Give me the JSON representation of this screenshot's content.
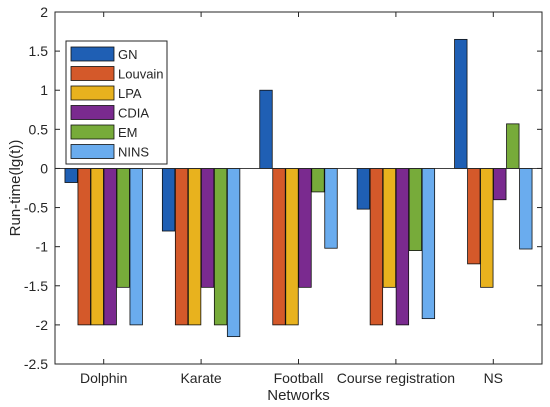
{
  "chart_data": {
    "type": "bar",
    "title": "",
    "xlabel": "Networks",
    "ylabel": "Run-time(lg(t))",
    "ylim": [
      -2.5,
      2
    ],
    "yticks": [
      -2.5,
      -2,
      -1.5,
      -1,
      -0.5,
      0,
      0.5,
      1,
      1.5,
      2
    ],
    "ytick_labels": [
      "-2.5",
      "-2",
      "-1.5",
      "-1",
      "-0.5",
      "0",
      "0.5",
      "1",
      "1.5",
      "2"
    ],
    "categories": [
      "Dolphin",
      "Karate",
      "Football",
      "Course registration",
      "NS"
    ],
    "grid": false,
    "legend_position": "top-left",
    "zero_line": true,
    "series": [
      {
        "name": "GN",
        "color": "#1f5fb4",
        "values": [
          -0.18,
          -0.8,
          1.0,
          -0.52,
          1.65
        ]
      },
      {
        "name": "Louvain",
        "color": "#d4592a",
        "values": [
          -2.0,
          -2.0,
          -2.0,
          -2.0,
          -1.22
        ]
      },
      {
        "name": "LPA",
        "color": "#e8b21e",
        "values": [
          -2.0,
          -2.0,
          -2.0,
          -1.52,
          -1.52
        ]
      },
      {
        "name": "CDIA",
        "color": "#7a2a8f",
        "values": [
          -2.0,
          -1.52,
          -1.52,
          -2.0,
          -0.4
        ]
      },
      {
        "name": "EM",
        "color": "#77ab3a",
        "values": [
          -1.52,
          -2.0,
          -0.3,
          -1.05,
          0.57
        ]
      },
      {
        "name": "NINS",
        "color": "#6aacee",
        "values": [
          -2.0,
          -2.15,
          -1.02,
          -1.92,
          -1.03
        ]
      }
    ]
  }
}
